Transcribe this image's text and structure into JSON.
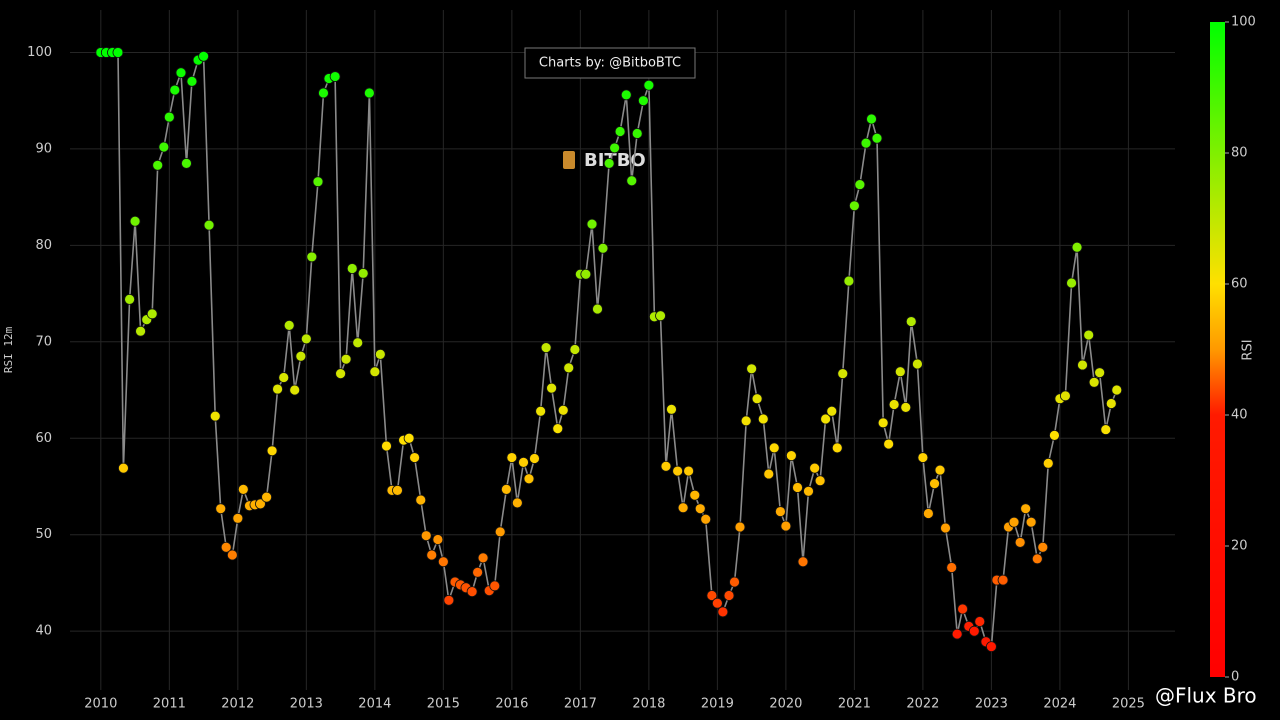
{
  "chart_data": {
    "type": "scatter-line",
    "ylabel": "RSI 12m",
    "annotation": "Charts by: @BitboBTC",
    "logo_text": "BITBO",
    "watermark": "@Flux Bro",
    "line_color": "#8a8a8a",
    "grid": true,
    "xlim": [
      2009.55,
      2025.68
    ],
    "ylim": [
      33.9,
      104.4
    ],
    "xticks": [
      2010,
      2011,
      2012,
      2013,
      2014,
      2015,
      2016,
      2017,
      2018,
      2019,
      2020,
      2021,
      2022,
      2023,
      2024,
      2025
    ],
    "yticks": [
      40,
      50,
      60,
      70,
      80,
      90,
      100
    ],
    "colorbar": {
      "title": "RSI",
      "range": [
        0,
        100
      ],
      "ticks": [
        0,
        20,
        40,
        60,
        80,
        100
      ],
      "colorscale": [
        [
          0,
          "#ff0000"
        ],
        [
          40,
          "#ff1a00"
        ],
        [
          50,
          "#ff9900"
        ],
        [
          60,
          "#ffe000"
        ],
        [
          100,
          "#00ff00"
        ]
      ]
    },
    "x": [
      2010.0,
      2010.08,
      2010.17,
      2010.25,
      2010.33,
      2010.42,
      2010.5,
      2010.58,
      2010.67,
      2010.75,
      2010.83,
      2010.92,
      2011.0,
      2011.08,
      2011.17,
      2011.25,
      2011.33,
      2011.42,
      2011.5,
      2011.58,
      2011.67,
      2011.75,
      2011.83,
      2011.92,
      2012.0,
      2012.08,
      2012.17,
      2012.25,
      2012.33,
      2012.42,
      2012.5,
      2012.58,
      2012.67,
      2012.75,
      2012.83,
      2012.92,
      2013.0,
      2013.08,
      2013.17,
      2013.25,
      2013.33,
      2013.42,
      2013.5,
      2013.58,
      2013.67,
      2013.75,
      2013.83,
      2013.92,
      2014.0,
      2014.08,
      2014.17,
      2014.25,
      2014.33,
      2014.42,
      2014.5,
      2014.58,
      2014.67,
      2014.75,
      2014.83,
      2014.92,
      2015.0,
      2015.08,
      2015.17,
      2015.25,
      2015.33,
      2015.42,
      2015.5,
      2015.58,
      2015.67,
      2015.75,
      2015.83,
      2015.92,
      2016.0,
      2016.08,
      2016.17,
      2016.25,
      2016.33,
      2016.42,
      2016.5,
      2016.58,
      2016.67,
      2016.75,
      2016.83,
      2016.92,
      2017.0,
      2017.08,
      2017.17,
      2017.25,
      2017.33,
      2017.42,
      2017.5,
      2017.58,
      2017.67,
      2017.75,
      2017.83,
      2017.92,
      2018.0,
      2018.08,
      2018.17,
      2018.25,
      2018.33,
      2018.42,
      2018.5,
      2018.58,
      2018.67,
      2018.75,
      2018.83,
      2018.92,
      2019.0,
      2019.08,
      2019.17,
      2019.25,
      2019.33,
      2019.42,
      2019.5,
      2019.58,
      2019.67,
      2019.75,
      2019.83,
      2019.92,
      2020.0,
      2020.08,
      2020.17,
      2020.25,
      2020.33,
      2020.42,
      2020.5,
      2020.58,
      2020.67,
      2020.75,
      2020.83,
      2020.92,
      2021.0,
      2021.08,
      2021.17,
      2021.25,
      2021.33,
      2021.42,
      2021.5,
      2021.58,
      2021.67,
      2021.75,
      2021.83,
      2021.92,
      2022.0,
      2022.08,
      2022.17,
      2022.25,
      2022.33,
      2022.42,
      2022.5,
      2022.58,
      2022.67,
      2022.75,
      2022.83,
      2022.92,
      2023.0,
      2023.08,
      2023.17,
      2023.25,
      2023.33,
      2023.42,
      2023.5,
      2023.58,
      2023.67,
      2023.75,
      2023.83,
      2023.92,
      2024.0,
      2024.08,
      2024.17,
      2024.25,
      2024.33,
      2024.42,
      2024.5,
      2024.58,
      2024.67,
      2024.75,
      2024.83
    ],
    "values": [
      100,
      100,
      100,
      100,
      56.9,
      74.4,
      82.5,
      71.1,
      72.3,
      72.9,
      88.3,
      90.2,
      93.3,
      96.1,
      97.9,
      88.5,
      97.0,
      99.2,
      99.6,
      82.1,
      62.3,
      52.7,
      48.7,
      47.9,
      51.7,
      54.7,
      53.0,
      53.1,
      53.2,
      53.9,
      58.7,
      65.1,
      66.3,
      71.7,
      65.0,
      68.5,
      70.3,
      78.8,
      86.6,
      95.8,
      97.3,
      97.5,
      66.7,
      68.2,
      77.6,
      69.9,
      77.1,
      95.8,
      66.9,
      68.7,
      59.2,
      54.6,
      54.6,
      59.8,
      60.0,
      58.0,
      53.6,
      49.9,
      47.9,
      49.5,
      47.2,
      43.2,
      45.1,
      44.8,
      44.5,
      44.1,
      46.1,
      47.6,
      44.2,
      44.7,
      50.3,
      54.7,
      58.0,
      53.3,
      57.5,
      55.8,
      57.9,
      62.8,
      69.4,
      65.2,
      61.0,
      62.9,
      67.3,
      69.2,
      77.0,
      77.0,
      82.2,
      73.4,
      79.7,
      88.5,
      90.1,
      91.8,
      95.6,
      86.7,
      91.6,
      95.0,
      96.6,
      72.6,
      72.7,
      57.1,
      63.0,
      56.6,
      52.8,
      56.6,
      54.1,
      52.7,
      51.6,
      43.7,
      42.9,
      42.0,
      43.7,
      45.1,
      50.8,
      61.8,
      67.2,
      64.1,
      62.0,
      56.3,
      59.0,
      52.4,
      50.9,
      58.2,
      54.9,
      47.2,
      54.5,
      56.9,
      55.6,
      62.0,
      62.8,
      59.0,
      66.7,
      76.3,
      84.1,
      86.3,
      90.6,
      93.1,
      91.1,
      61.6,
      59.4,
      63.5,
      66.9,
      63.2,
      72.1,
      67.7,
      58.0,
      52.2,
      55.3,
      56.7,
      50.7,
      46.6,
      39.7,
      42.3,
      40.5,
      40.0,
      41.0,
      38.9,
      38.4,
      45.3,
      45.3,
      50.8,
      51.3,
      49.2,
      52.7,
      51.3,
      47.5,
      48.7,
      57.4,
      60.3,
      64.1,
      64.4,
      76.1,
      79.8,
      67.6,
      70.7,
      65.8,
      66.8,
      60.9,
      63.6,
      65.0
    ]
  }
}
